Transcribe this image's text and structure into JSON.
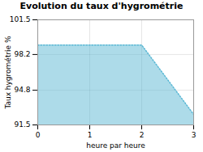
{
  "chart_data": {
    "type": "area",
    "title": "Evolution du taux d'hygrométrie",
    "xlabel": "heure par heure",
    "ylabel": "Taux hygrométrie %",
    "x": [
      0,
      2,
      3
    ],
    "values": [
      99.1,
      99.1,
      92.5
    ],
    "xlim": [
      0,
      3
    ],
    "xticks": [
      0,
      1,
      2,
      3
    ],
    "ylim": [
      91.5,
      101.5
    ],
    "yticks": [
      91.5,
      94.8,
      98.2,
      101.5
    ],
    "color": "#5bb8d4",
    "line_style": "dotted",
    "grid": true
  }
}
